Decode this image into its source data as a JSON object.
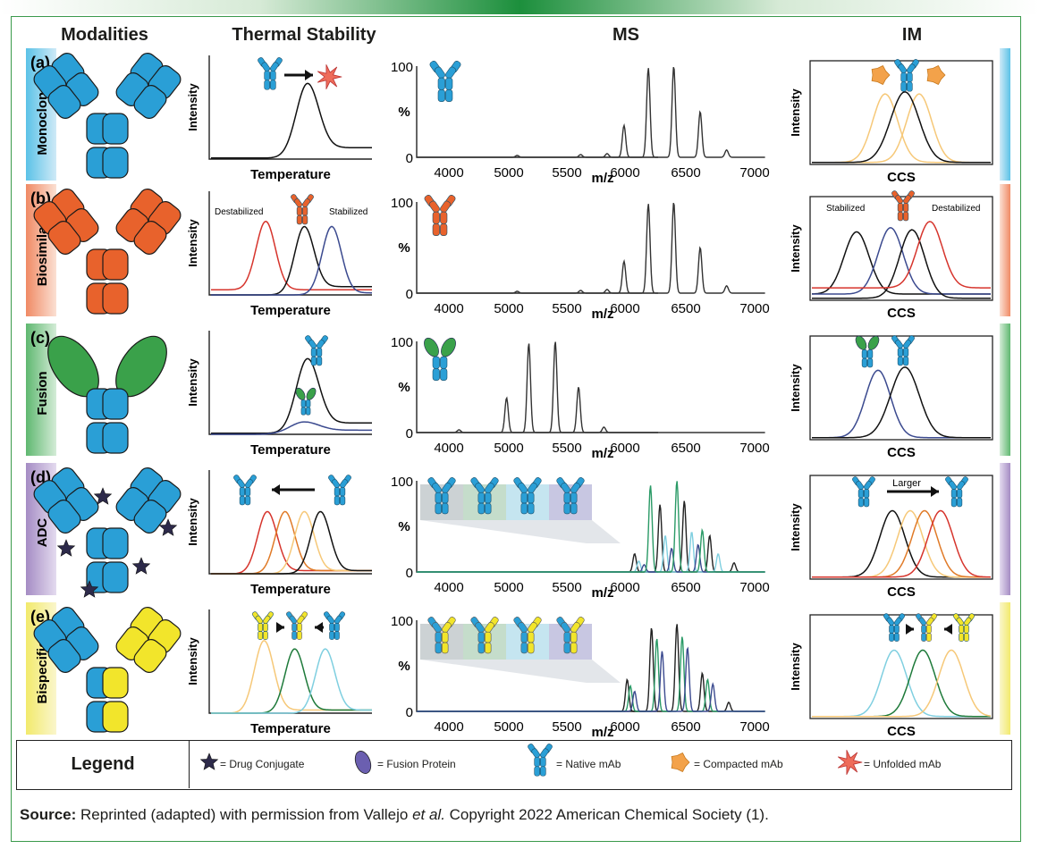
{
  "headers": {
    "modalities": "Modalities",
    "thermal": "Thermal Stability",
    "ms": "MS",
    "im": "IM"
  },
  "rows": [
    {
      "letter": "(a)",
      "name": "Monoclonal",
      "color": "#5bc2e7",
      "tint": "#cfeaf7",
      "arm": "#2a9fd6"
    },
    {
      "letter": "(b)",
      "name": "Biosimilar",
      "color": "#f08a64",
      "tint": "#fbe0d3",
      "arm": "#e8622c"
    },
    {
      "letter": "(c)",
      "name": "Fusion",
      "color": "#5fb870",
      "tint": "#d4ecd7",
      "arm": "#3aa14a"
    },
    {
      "letter": "(d)",
      "name": "ADC",
      "color": "#a58cc4",
      "tint": "#e4dbef",
      "arm": "#2a9fd6"
    },
    {
      "letter": "(e)",
      "name": "Bispecific",
      "color": "#f2ea6c",
      "tint": "#faf6cc",
      "arm": "#f2e52b"
    }
  ],
  "thermal": {
    "ylabel": "Intensity",
    "xlabel": "Temperature",
    "destabilized": "Destabilized",
    "stabilized": "Stabilized"
  },
  "ms": {
    "ylabel": "%",
    "xlabel": "m/z",
    "y_ticks": [
      "100",
      "0"
    ],
    "x_ticks": [
      "4000",
      "5000",
      "5500",
      "6000",
      "6500",
      "7000"
    ]
  },
  "im": {
    "ylabel": "Intensity",
    "xlabel": "CCS",
    "stabilized": "Stabilized",
    "destabilized": "Destabilized",
    "larger": "Larger"
  },
  "legend": {
    "title": "Legend",
    "items": [
      "= Drug Conjugate",
      "= Fusion Protein",
      "= Native mAb",
      "= Compacted mAb",
      "= Unfolded mAb"
    ]
  },
  "source": {
    "label": "Source:",
    "text": "Reprinted (adapted) with permission from Vallejo",
    "etal": "et al.",
    "rest": "Copyright 2022 American Chemical Society (1)."
  },
  "colors": {
    "mab_blue": "#2a9fd6",
    "red": "#d6342c",
    "navy": "#3b4a8f",
    "orange": "#e07a27",
    "peach": "#f6c878",
    "green": "#1e7a3a",
    "light_teal": "#7fcfe0",
    "frame_green": "#3a9a4b"
  }
}
